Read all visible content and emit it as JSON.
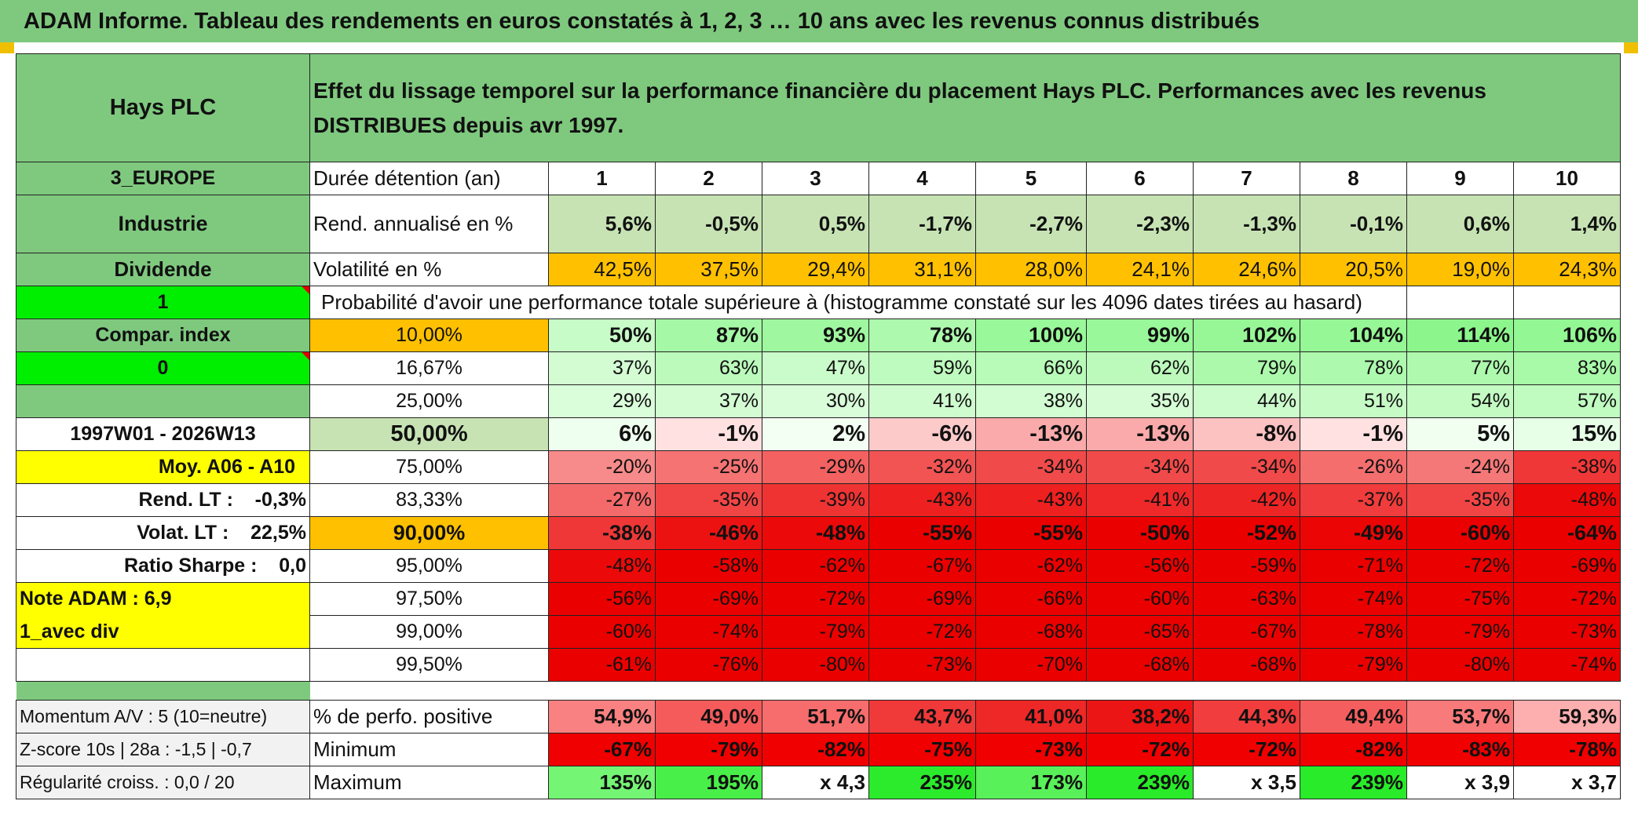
{
  "banner": "ADAM Informe. Tableau des rendements en euros constatés à 1, 2, 3 … 10 ans avec les revenus connus distribués",
  "header": {
    "name": "Hays PLC",
    "description": "Effet du lissage temporel sur la performance financière du placement Hays PLC. Performances avec les revenus DISTRIBUES depuis avr 1997."
  },
  "left": {
    "region": "3_EUROPE",
    "sector": "Industrie",
    "income": "Dividende",
    "value1": "1",
    "compar": "Compar. index",
    "value0": "0",
    "period": "1997W01 - 2026W13",
    "moy": "Moy. A06 - A10",
    "rend_lt": "Rend. LT :    -0,3%",
    "volat_lt": "Volat. LT :    22,5%",
    "sharpe": "Ratio Sharpe :    0,0",
    "note": "Note ADAM : 6,9",
    "avec_div": "1_avec div",
    "momentum": "Momentum A/V : 5 (10=neutre)",
    "zscore": "Z-score 10s | 28a : -1,5 | -0,7",
    "regularite": "Régularité croiss. : 0,0 / 20"
  },
  "labels": {
    "duree": "Durée détention (an)",
    "rend": "Rend. annualisé en %",
    "vol": "Volatilité en %",
    "prob": "Probabilité d'avoir une performance totale supérieure à (histogramme constaté sur les 4096 dates tirées au hasard)",
    "pct_pos": "% de perfo. positive",
    "minimum": "Minimum",
    "maximum": "Maximum"
  },
  "years": [
    "1",
    "2",
    "3",
    "4",
    "5",
    "6",
    "7",
    "8",
    "9",
    "10"
  ],
  "rendement": [
    "5,6%",
    "-0,5%",
    "0,5%",
    "-1,7%",
    "-2,7%",
    "-2,3%",
    "-1,3%",
    "-0,1%",
    "0,6%",
    "1,4%"
  ],
  "volatilite": [
    "42,5%",
    "37,5%",
    "29,4%",
    "31,1%",
    "28,0%",
    "24,1%",
    "24,6%",
    "20,5%",
    "19,0%",
    "24,3%"
  ],
  "percentiles": [
    {
      "p": "10,00%",
      "v": [
        "50%",
        "87%",
        "93%",
        "78%",
        "100%",
        "99%",
        "102%",
        "104%",
        "114%",
        "106%"
      ]
    },
    {
      "p": "16,67%",
      "v": [
        "37%",
        "63%",
        "47%",
        "59%",
        "66%",
        "62%",
        "79%",
        "78%",
        "77%",
        "83%"
      ]
    },
    {
      "p": "25,00%",
      "v": [
        "29%",
        "37%",
        "30%",
        "41%",
        "38%",
        "35%",
        "44%",
        "51%",
        "54%",
        "57%"
      ]
    },
    {
      "p": "50,00%",
      "v": [
        "6%",
        "-1%",
        "2%",
        "-6%",
        "-13%",
        "-13%",
        "-8%",
        "-1%",
        "5%",
        "15%"
      ]
    },
    {
      "p": "75,00%",
      "v": [
        "-20%",
        "-25%",
        "-29%",
        "-32%",
        "-34%",
        "-34%",
        "-34%",
        "-26%",
        "-24%",
        "-38%"
      ]
    },
    {
      "p": "83,33%",
      "v": [
        "-27%",
        "-35%",
        "-39%",
        "-43%",
        "-43%",
        "-41%",
        "-42%",
        "-37%",
        "-35%",
        "-48%"
      ]
    },
    {
      "p": "90,00%",
      "v": [
        "-38%",
        "-46%",
        "-48%",
        "-55%",
        "-55%",
        "-50%",
        "-52%",
        "-49%",
        "-60%",
        "-64%"
      ]
    },
    {
      "p": "95,00%",
      "v": [
        "-48%",
        "-58%",
        "-62%",
        "-67%",
        "-62%",
        "-56%",
        "-59%",
        "-71%",
        "-72%",
        "-69%"
      ]
    },
    {
      "p": "97,50%",
      "v": [
        "-56%",
        "-69%",
        "-72%",
        "-69%",
        "-66%",
        "-60%",
        "-63%",
        "-74%",
        "-75%",
        "-72%"
      ]
    },
    {
      "p": "99,00%",
      "v": [
        "-60%",
        "-74%",
        "-79%",
        "-72%",
        "-68%",
        "-65%",
        "-67%",
        "-78%",
        "-79%",
        "-73%"
      ]
    },
    {
      "p": "99,50%",
      "v": [
        "-61%",
        "-76%",
        "-80%",
        "-73%",
        "-70%",
        "-68%",
        "-68%",
        "-79%",
        "-80%",
        "-74%"
      ]
    }
  ],
  "pct_positive": [
    "54,9%",
    "49,0%",
    "51,7%",
    "43,7%",
    "41,0%",
    "38,2%",
    "44,3%",
    "49,4%",
    "53,7%",
    "59,3%"
  ],
  "minimum": [
    "-67%",
    "-79%",
    "-82%",
    "-75%",
    "-73%",
    "-72%",
    "-72%",
    "-82%",
    "-83%",
    "-78%"
  ],
  "maximum": [
    "135%",
    "195%",
    "x 4,3",
    "235%",
    "173%",
    "239%",
    "x 3,5",
    "239%",
    "x 3,9",
    "x 3,7"
  ],
  "colors": {
    "header_green": "#7fc97f",
    "light_green": "#c7e3b4",
    "orange": "#ffc000",
    "bright_green": "#00ee00",
    "yellow": "#ffff00",
    "red_text": "#e00000"
  }
}
